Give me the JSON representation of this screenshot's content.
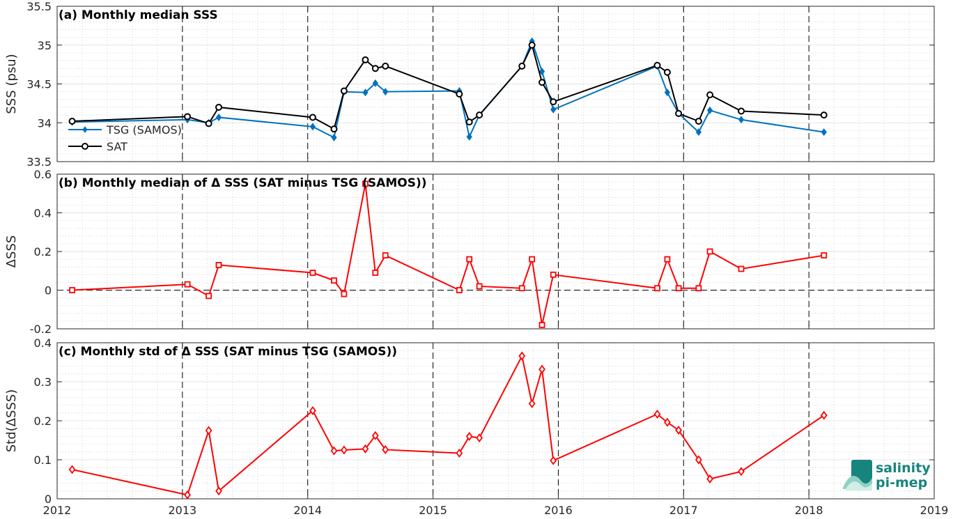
{
  "x_ticks": [
    "2012",
    "2013",
    "2014",
    "2015",
    "2016",
    "2017",
    "2018",
    "2019"
  ],
  "logo": {
    "line1": "salinity",
    "line2": "pi-mep"
  },
  "colors": {
    "tsg": "#0072bd",
    "sat": "#000000",
    "delta": "#ff0000",
    "logo": "#17857d"
  },
  "chart_data": [
    {
      "type": "line",
      "title": "(a) Monthly median SSS",
      "xlabel": "",
      "ylabel": "SSS (psu)",
      "xlim": [
        2012,
        2019
      ],
      "ylim": [
        33.5,
        35.5
      ],
      "y_ticks": [
        "33.5",
        "34",
        "34.5",
        "35",
        "35.5"
      ],
      "y_tick_values": [
        33.5,
        34,
        34.5,
        35,
        35.5
      ],
      "grid": true,
      "legend_position": "lower-left",
      "series": [
        {
          "name": "TSG (SAMOS)",
          "marker": "diamond",
          "color": "#0072bd",
          "x": [
            2012.12,
            2013.04,
            2013.21,
            2013.29,
            2014.04,
            2014.21,
            2014.29,
            2014.46,
            2014.54,
            2014.62,
            2015.21,
            2015.29,
            2015.37,
            2015.71,
            2015.79,
            2015.87,
            2015.96,
            2016.79,
            2016.87,
            2016.96,
            2017.12,
            2017.21,
            2017.46,
            2018.12
          ],
          "y": [
            34.01,
            34.04,
            34.0,
            34.07,
            33.95,
            33.81,
            34.4,
            34.39,
            34.51,
            34.4,
            34.41,
            33.82,
            34.1,
            34.73,
            35.05,
            34.66,
            34.17,
            34.73,
            34.39,
            34.12,
            33.88,
            34.16,
            34.04,
            33.88
          ]
        },
        {
          "name": "SAT",
          "marker": "circle",
          "color": "#000000",
          "x": [
            2012.12,
            2013.04,
            2013.21,
            2013.29,
            2014.04,
            2014.21,
            2014.29,
            2014.46,
            2014.54,
            2014.62,
            2015.21,
            2015.29,
            2015.37,
            2015.71,
            2015.79,
            2015.87,
            2015.96,
            2016.79,
            2016.87,
            2016.96,
            2017.12,
            2017.21,
            2017.46,
            2018.12
          ],
          "y": [
            34.02,
            34.08,
            33.99,
            34.2,
            34.07,
            33.92,
            34.41,
            34.81,
            34.7,
            34.73,
            34.37,
            34.01,
            34.1,
            34.73,
            35.0,
            34.52,
            34.27,
            34.74,
            34.65,
            34.12,
            34.02,
            34.36,
            34.15,
            34.1
          ]
        }
      ]
    },
    {
      "type": "line",
      "title": "(b) Monthly median of Δ SSS (SAT minus TSG (SAMOS))",
      "xlabel": "",
      "ylabel": "ΔSSS",
      "xlim": [
        2012,
        2019
      ],
      "ylim": [
        -0.2,
        0.6
      ],
      "y_ticks": [
        "-0.2",
        "0",
        "0.2",
        "0.4",
        "0.6"
      ],
      "y_tick_values": [
        -0.2,
        0,
        0.2,
        0.4,
        0.6
      ],
      "grid": true,
      "series": [
        {
          "marker": "square",
          "color": "#ff0000",
          "x": [
            2012.12,
            2013.04,
            2013.21,
            2013.29,
            2014.04,
            2014.21,
            2014.29,
            2014.46,
            2014.54,
            2014.62,
            2015.21,
            2015.29,
            2015.37,
            2015.71,
            2015.79,
            2015.87,
            2015.96,
            2016.79,
            2016.87,
            2016.96,
            2017.12,
            2017.21,
            2017.46,
            2018.12
          ],
          "y": [
            0.0,
            0.03,
            -0.03,
            0.13,
            0.09,
            0.05,
            -0.02,
            0.55,
            0.09,
            0.18,
            0.0,
            0.16,
            0.02,
            0.01,
            0.16,
            -0.18,
            0.08,
            0.01,
            0.16,
            0.01,
            0.01,
            0.2,
            0.11,
            0.18
          ]
        }
      ]
    },
    {
      "type": "line",
      "title": "(c) Monthly std of Δ SSS (SAT minus TSG (SAMOS))",
      "xlabel": "",
      "ylabel": "Std(ΔSSS)",
      "xlim": [
        2012,
        2019
      ],
      "ylim": [
        0,
        0.4
      ],
      "y_ticks": [
        "0",
        "0.1",
        "0.2",
        "0.3",
        "0.4"
      ],
      "y_tick_values": [
        0,
        0.1,
        0.2,
        0.3,
        0.4
      ],
      "grid": true,
      "series": [
        {
          "marker": "diamond",
          "color": "#ff0000",
          "x": [
            2012.12,
            2013.04,
            2013.21,
            2013.29,
            2014.04,
            2014.21,
            2014.29,
            2014.46,
            2014.54,
            2014.62,
            2015.21,
            2015.29,
            2015.37,
            2015.71,
            2015.79,
            2015.87,
            2015.96,
            2016.79,
            2016.87,
            2016.96,
            2017.12,
            2017.21,
            2017.46,
            2018.12
          ],
          "y": [
            0.075,
            0.01,
            0.175,
            0.02,
            0.226,
            0.123,
            0.125,
            0.128,
            0.162,
            0.126,
            0.117,
            0.16,
            0.156,
            0.366,
            0.244,
            0.332,
            0.098,
            0.217,
            0.196,
            0.176,
            0.1,
            0.051,
            0.07,
            0.214
          ]
        }
      ]
    }
  ]
}
